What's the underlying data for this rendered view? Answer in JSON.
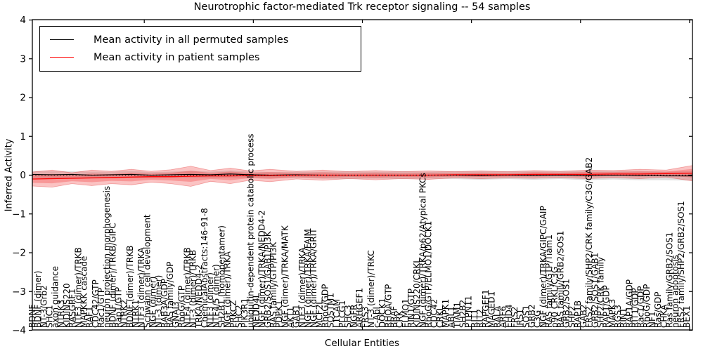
{
  "title": "Neurotrophic factor-mediated Trk receptor signaling -- 54 samples",
  "legend": {
    "items": [
      {
        "label": "Mean activity in all permuted samples",
        "color": "#000000"
      },
      {
        "label": "Mean activity in patient samples",
        "color": "#ff0000"
      }
    ]
  },
  "colors": {
    "axis": "#000000",
    "permuted_line": "#000000",
    "patient_line": "#ff0000",
    "permuted_band": "rgba(130,130,130,0.25)",
    "patient_band": "rgba(240,40,40,0.28)",
    "zero_dotted": "#000000"
  },
  "chart_data": {
    "type": "line",
    "title": "Neurotrophic factor-mediated Trk receptor signaling -- 54 samples",
    "xlabel": "Cellular Entities",
    "ylabel": "Inferred Activity",
    "ylim": [
      -4,
      4
    ],
    "yticks": [
      4,
      3,
      2,
      1,
      0,
      -1,
      -2,
      -3,
      -4
    ],
    "grid": false,
    "legend_position": "upper left",
    "series": [
      {
        "name": "Mean activity in all permuted samples",
        "color": "#000000",
        "band": "std"
      },
      {
        "name": "Mean activity in patient samples",
        "color": "#ff0000",
        "band": "std"
      }
    ],
    "band_points_format": [
      "t(0-1 across x axis)",
      "patient_mean",
      "patient_std",
      "permuted_mean",
      "permuted_std"
    ],
    "band_points": [
      [
        0.0,
        -0.1,
        0.18,
        0.02,
        0.09
      ],
      [
        0.03,
        -0.09,
        0.22,
        0.01,
        0.09
      ],
      [
        0.06,
        -0.08,
        0.14,
        0.02,
        0.08
      ],
      [
        0.09,
        -0.07,
        0.2,
        0.0,
        0.09
      ],
      [
        0.12,
        -0.06,
        0.16,
        0.01,
        0.08
      ],
      [
        0.15,
        -0.05,
        0.2,
        0.02,
        0.09
      ],
      [
        0.18,
        -0.04,
        0.14,
        0.0,
        0.08
      ],
      [
        0.21,
        -0.04,
        0.18,
        0.01,
        0.08
      ],
      [
        0.24,
        -0.03,
        0.26,
        0.02,
        0.09
      ],
      [
        0.27,
        -0.02,
        0.14,
        0.01,
        0.08
      ],
      [
        0.3,
        -0.02,
        0.2,
        0.03,
        0.09
      ],
      [
        0.33,
        -0.01,
        0.12,
        0.01,
        0.08
      ],
      [
        0.36,
        -0.01,
        0.16,
        0.0,
        0.08
      ],
      [
        0.4,
        0.0,
        0.1,
        0.01,
        0.08
      ],
      [
        0.44,
        0.0,
        0.13,
        0.0,
        0.09
      ],
      [
        0.48,
        0.0,
        0.09,
        0.0,
        0.1
      ],
      [
        0.52,
        0.0,
        0.12,
        0.0,
        0.09
      ],
      [
        0.56,
        0.0,
        0.09,
        0.0,
        0.1
      ],
      [
        0.6,
        0.0,
        0.11,
        0.0,
        0.09
      ],
      [
        0.64,
        0.01,
        0.08,
        0.0,
        0.1
      ],
      [
        0.68,
        0.01,
        0.1,
        -0.01,
        0.11
      ],
      [
        0.72,
        0.01,
        0.08,
        0.0,
        0.1
      ],
      [
        0.76,
        0.02,
        0.1,
        -0.01,
        0.11
      ],
      [
        0.8,
        0.02,
        0.08,
        0.0,
        0.1
      ],
      [
        0.84,
        0.02,
        0.11,
        -0.01,
        0.12
      ],
      [
        0.88,
        0.03,
        0.09,
        0.0,
        0.11
      ],
      [
        0.92,
        0.03,
        0.12,
        -0.01,
        0.12
      ],
      [
        0.96,
        0.04,
        0.09,
        -0.02,
        0.11
      ],
      [
        1.0,
        0.05,
        0.2,
        -0.02,
        0.12
      ]
    ],
    "entities": [
      "BDNF",
      "BDNF (dimer)",
      "NT-3/Grb2",
      "SHC1",
      "axon guidance",
      "NTRK3",
      "KIDINS220",
      "RASGRF1",
      "NTF3 (dimer)/TRKB",
      "MAPKKK cascade",
      "RAF1",
      "CDC42/GTP",
      "Rac1/GTP",
      "neuron projection morphogenesis",
      "BDNF (dimer)/TRKB/GIPC",
      "Rap1/GTP",
      "NTRK2",
      "BDNF (dimer)/TRKB",
      "NTRK1",
      "NTF3 (dimer)/TRKA",
      "Schwann cell development",
      "NGF (dimer)",
      "NT-3 (dimer)",
      "RAB3A/GDP",
      "RAS family/GDP",
      "GNAI3",
      "RhoG/GTP",
      "NTF4 (dimer)/TRKB",
      "NT-3 (dimer)/TRKB",
      "TRKA/NEDD4-2",
      "ChemicalAbstracts:146-91-8",
      "NTF3 (dimer)",
      "NTF4/5 (dimer)",
      "SH2B1 (homopentamer)",
      "NGF (dimer)/TRKA",
      "PRKCZ",
      "SHC2",
      "PIK3R1",
      "ubiquitin-dependent protein catabolic process",
      "NEDD4L",
      "NGF (dimer)/TRKA/NEDD4-2",
      "GRB2/SOS1/GAB1/PI3K",
      "RAS family/GTP/PI3K",
      "PDPK1",
      "NGF (dimer)/TRKA/MATK",
      "AKT1",
      "GAB1",
      "NTF3 (dimer)/TRKA",
      "NGF (dimer)/TRKA/FAIM",
      "NGF (dimer)/TRKA/GRIT",
      "MCF2L",
      "RhoG/GDP",
      "SQSTM1",
      "L1CAM",
      "PLCG1",
      "SHC3",
      "NGFR",
      "ARHGEF1",
      "FRS3",
      "NT-3 (dimer)/TRKC",
      "c-Abl",
      "DOCK1",
      "RHOA/GTP",
      "BRAF",
      "CRK",
      "ELMO1",
      "RIN1/GTP",
      "KIDINS220/CRKL",
      "NGF (dimer)/TRKA/p62/Atypical PKCs",
      "RhoG/GTP/ELMO1/DOCK1",
      "CDC42",
      "CRKL",
      "MAPK1",
      "ABL1",
      "TIAM1",
      "SH2B2",
      "PTPN11",
      "RIT1",
      "RIT2",
      "RAPGEF1",
      "MAGED1",
      "RALA",
      "ARF6",
      "EHD4",
      "FRS2",
      "IRS1",
      "SOS1",
      "GRB2",
      "C3G",
      "NGF (dimer)/TRKA/GIPC/GAIP",
      "RAS family/GTP/Tiam1",
      "p90 CRKL/C3G",
      "RAS family/GRB2/SOS1",
      "GRB2/SOS1",
      "SHP2",
      "RAP1B",
      "GAB2",
      "FRS2 family/SHP2/CRK family/C3G/GAB2",
      "GRB2/SOS1/GAB1",
      "SHP2/CRK family",
      "RAP1/GDP",
      "MAPK3",
      "RGS3",
      "RIN1",
      "RAP1A/GDP",
      "RIT1/GDP",
      "Rac1/GDP",
      "RhoG/GDP",
      "NF1",
      "Ras/GDP",
      "CHKA",
      "Ras family/GRB2/SOS1",
      "neuron apoptosis",
      "FRS2 family/SHP2/GRB2/SOS1",
      "BEX1"
    ]
  }
}
